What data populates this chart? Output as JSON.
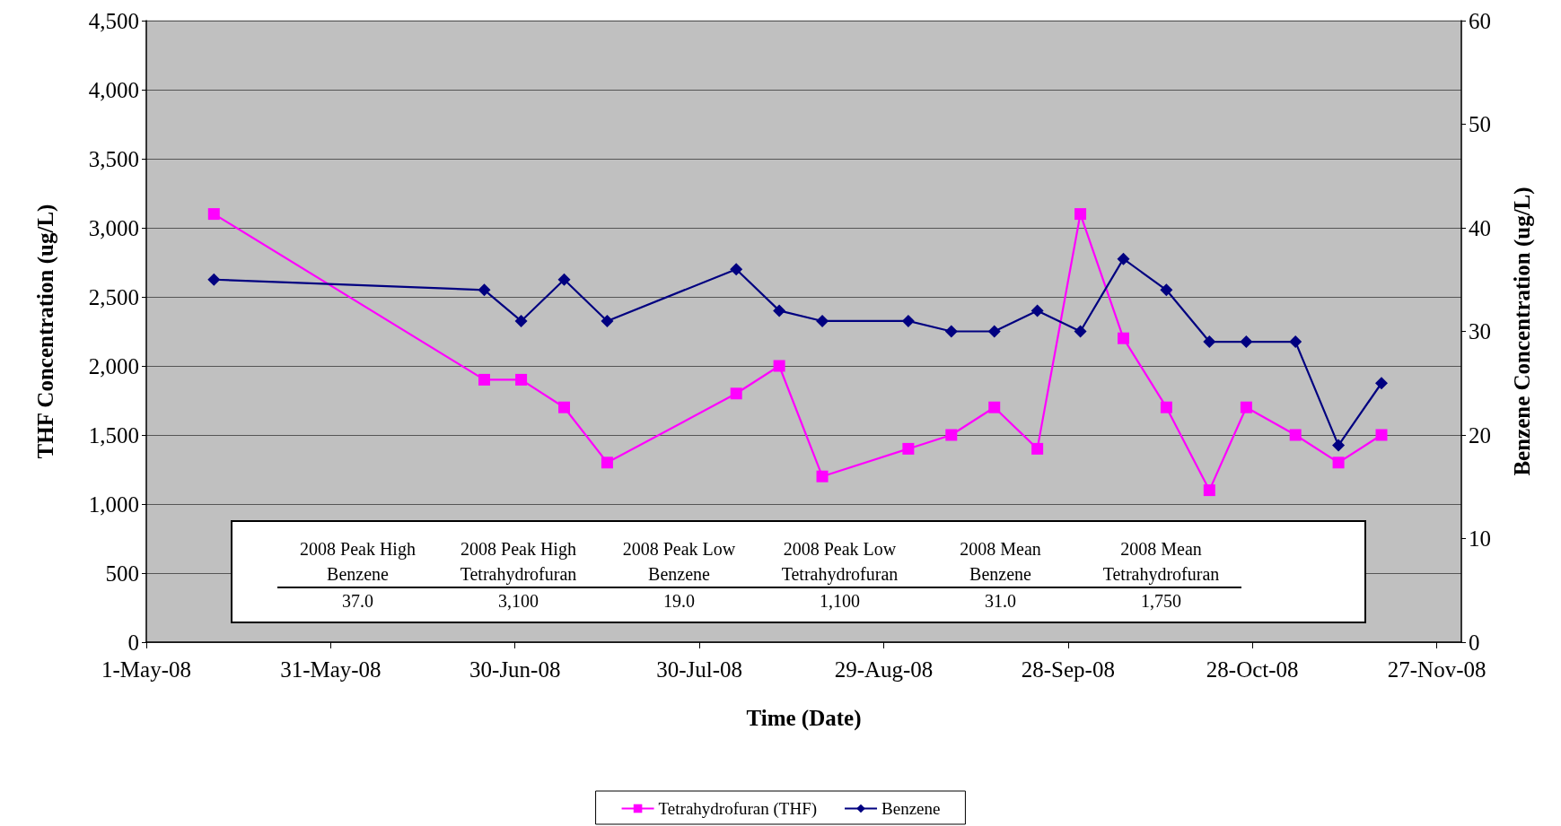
{
  "chart_data": {
    "type": "line",
    "xlabel": "Time (Date)",
    "ylabel": "THF Concentration (ug/L)",
    "y2label": "Benzene Concentration (ug/L)",
    "x": [
      "2008-05-12",
      "2008-06-25",
      "2008-07-01",
      "2008-07-08",
      "2008-07-15",
      "2008-08-05",
      "2008-08-12",
      "2008-08-19",
      "2008-09-02",
      "2008-09-09",
      "2008-09-16",
      "2008-09-23",
      "2008-09-30",
      "2008-10-07",
      "2008-10-14",
      "2008-10-21",
      "2008-10-27",
      "2008-11-04",
      "2008-11-11",
      "2008-11-18"
    ],
    "series": [
      {
        "name": "Tetrahydrofuran (THF)",
        "color": "#ff00ff",
        "marker": "square",
        "values": [
          3100,
          1900,
          1900,
          1700,
          1300,
          1800,
          2000,
          1200,
          1400,
          1500,
          1700,
          1400,
          3100,
          2200,
          1700,
          1100,
          1700,
          1500,
          1300,
          1500
        ]
      },
      {
        "name": "Benzene",
        "color": "#000080",
        "marker": "diamond",
        "axis": "y2",
        "values": [
          35,
          34,
          31,
          35,
          31,
          36,
          32,
          31,
          31,
          30,
          30,
          32,
          30,
          37,
          34,
          29,
          29,
          29,
          19,
          25
        ]
      }
    ],
    "xlim": [
      "2008-05-01",
      "2008-12-01"
    ],
    "xticks": [
      {
        "value": "2008-05-01",
        "label": "1-May-08"
      },
      {
        "value": "2008-05-31",
        "label": "31-May-08"
      },
      {
        "value": "2008-06-30",
        "label": "30-Jun-08"
      },
      {
        "value": "2008-07-30",
        "label": "30-Jul-08"
      },
      {
        "value": "2008-08-29",
        "label": "29-Aug-08"
      },
      {
        "value": "2008-09-28",
        "label": "28-Sep-08"
      },
      {
        "value": "2008-10-28",
        "label": "28-Oct-08"
      },
      {
        "value": "2008-11-27",
        "label": "27-Nov-08"
      }
    ],
    "ylim": [
      0,
      4500
    ],
    "yticks": [
      {
        "value": 0,
        "label": "0"
      },
      {
        "value": 500,
        "label": "500"
      },
      {
        "value": 1000,
        "label": "1,000"
      },
      {
        "value": 1500,
        "label": "1,500"
      },
      {
        "value": 2000,
        "label": "2,000"
      },
      {
        "value": 2500,
        "label": "2,500"
      },
      {
        "value": 3000,
        "label": "3,000"
      },
      {
        "value": 3500,
        "label": "3,500"
      },
      {
        "value": 4000,
        "label": "4,000"
      },
      {
        "value": 4500,
        "label": "4,500"
      }
    ],
    "y2lim": [
      0,
      60
    ],
    "y2ticks": [
      0,
      10,
      20,
      30,
      40,
      50,
      60
    ],
    "grid": "y",
    "legend": "bottom",
    "annotations": [
      "2008 Peak High Benzene",
      "37.0",
      "2008 Peak High Tetrahydrofuran",
      "3,100",
      "2008 Peak Low Benzene",
      "19.0",
      "2008 Peak Low Tetrahydrofuran",
      "1,100",
      "2008 Mean Benzene",
      "31.0",
      "2008 Mean Tetrahydrofuran",
      "1,750"
    ]
  }
}
